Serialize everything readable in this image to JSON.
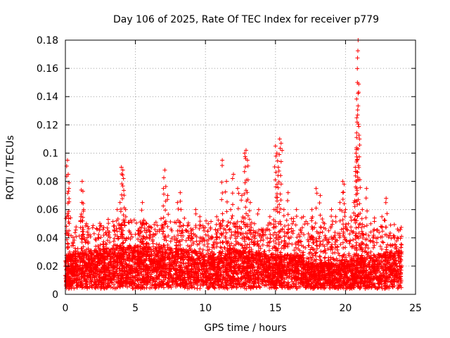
{
  "chart_data": {
    "type": "scatter",
    "title": "Day 106 of 2025, Rate Of TEC Index for receiver p779",
    "xlabel": "GPS time / hours",
    "ylabel": "ROTI / TECUs",
    "xlim": [
      0,
      25
    ],
    "ylim": [
      0,
      0.18
    ],
    "x_ticks": [
      0,
      5,
      10,
      15,
      20,
      25
    ],
    "y_ticks": [
      0,
      0.02,
      0.04,
      0.06,
      0.08,
      0.1,
      0.12,
      0.14,
      0.16,
      0.18
    ],
    "x_tick_labels": [
      "0",
      "5",
      "10",
      "15",
      "20",
      "25"
    ],
    "y_tick_labels": [
      "0",
      "0.02",
      "0.04",
      "0.06",
      "0.08",
      "0.1",
      "0.12",
      "0.14",
      "0.16",
      "0.18"
    ],
    "grid": true,
    "marker": "+",
    "color": "#ff0000",
    "series": [
      {
        "name": "ROTI",
        "x": [
          0.05,
          0.1,
          0.15,
          0.2,
          0.25,
          0.3,
          0.35,
          0.4,
          0.5,
          0.6,
          0.75,
          0.9,
          1.0,
          1.1,
          1.2,
          1.25,
          1.3,
          1.35,
          1.5,
          1.6,
          1.75,
          1.9,
          2.0,
          2.2,
          2.5,
          2.8,
          3.0,
          3.2,
          3.5,
          3.7,
          3.9,
          4.0,
          4.1,
          4.15,
          4.3,
          4.5,
          4.7,
          5.0,
          5.2,
          5.5,
          5.8,
          6.0,
          6.3,
          6.6,
          6.9,
          7.0,
          7.1,
          7.3,
          7.6,
          7.9,
          8.0,
          8.2,
          8.5,
          8.8,
          9.0,
          9.3,
          9.6,
          9.9,
          10.2,
          10.5,
          10.8,
          11.0,
          11.2,
          11.5,
          11.8,
          12.0,
          12.3,
          12.6,
          12.8,
          12.9,
          13.0,
          13.2,
          13.5,
          13.8,
          14.0,
          14.3,
          14.6,
          14.9,
          15.0,
          15.1,
          15.2,
          15.3,
          15.4,
          15.6,
          15.9,
          16.2,
          16.5,
          16.8,
          17.0,
          17.3,
          17.6,
          17.9,
          18.2,
          18.5,
          18.8,
          19.0,
          19.3,
          19.6,
          19.8,
          19.9,
          20.0,
          20.2,
          20.4,
          20.6,
          20.7,
          20.75,
          20.8,
          20.85,
          20.9,
          21.0,
          21.2,
          21.5,
          21.8,
          22.0,
          22.3,
          22.6,
          22.9,
          23.2,
          23.5,
          23.8,
          24.0
        ],
        "y": [
          0.012,
          0.045,
          0.095,
          0.085,
          0.075,
          0.03,
          0.02,
          0.015,
          0.025,
          0.018,
          0.03,
          0.02,
          0.015,
          0.055,
          0.08,
          0.073,
          0.06,
          0.04,
          0.05,
          0.048,
          0.03,
          0.025,
          0.018,
          0.02,
          0.035,
          0.03,
          0.025,
          0.015,
          0.045,
          0.06,
          0.065,
          0.09,
          0.088,
          0.082,
          0.06,
          0.04,
          0.02,
          0.03,
          0.045,
          0.065,
          0.05,
          0.04,
          0.025,
          0.03,
          0.03,
          0.075,
          0.088,
          0.07,
          0.045,
          0.02,
          0.065,
          0.072,
          0.03,
          0.04,
          0.045,
          0.06,
          0.055,
          0.045,
          0.05,
          0.04,
          0.055,
          0.04,
          0.095,
          0.08,
          0.06,
          0.085,
          0.075,
          0.07,
          0.1,
          0.102,
          0.095,
          0.065,
          0.05,
          0.06,
          0.04,
          0.045,
          0.055,
          0.06,
          0.105,
          0.1,
          0.09,
          0.11,
          0.107,
          0.06,
          0.072,
          0.05,
          0.06,
          0.045,
          0.055,
          0.05,
          0.06,
          0.075,
          0.07,
          0.05,
          0.045,
          0.06,
          0.055,
          0.065,
          0.08,
          0.078,
          0.06,
          0.05,
          0.045,
          0.065,
          0.09,
          0.1,
          0.125,
          0.15,
          0.18,
          0.11,
          0.06,
          0.075,
          0.05,
          0.045,
          0.04,
          0.055,
          0.068,
          0.035,
          0.04,
          0.045,
          0.035
        ]
      }
    ],
    "noise_points": 5200
  }
}
